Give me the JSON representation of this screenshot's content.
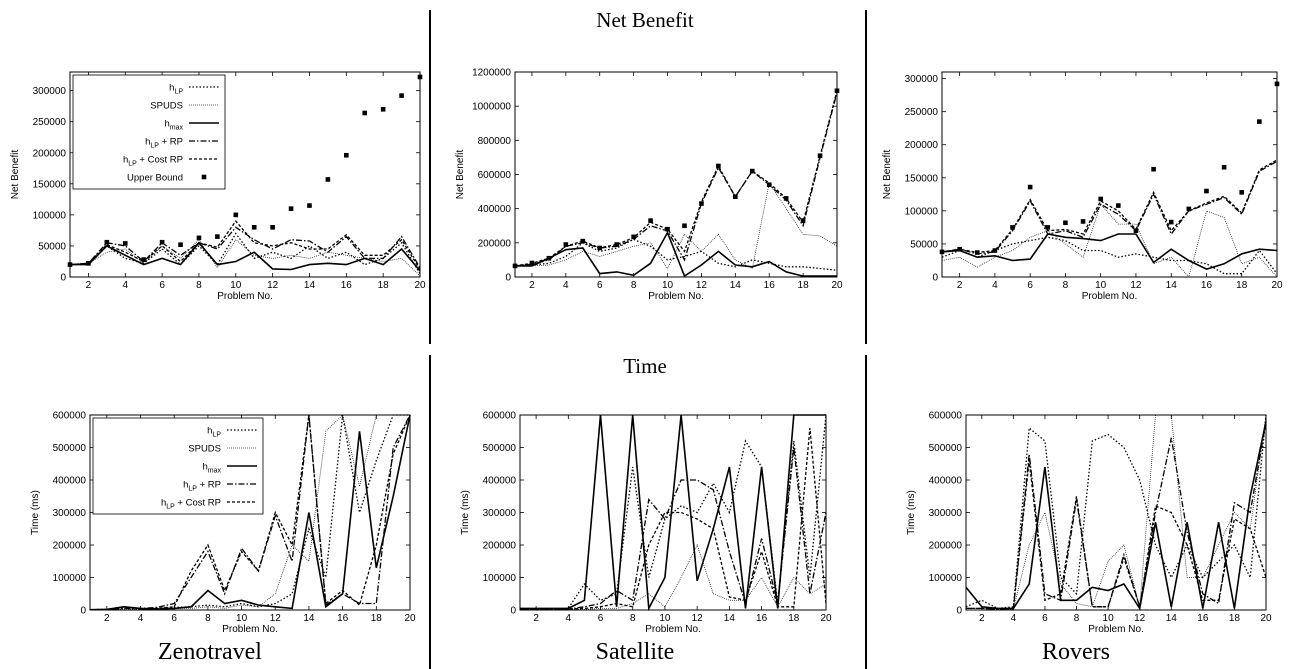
{
  "titles": {
    "net_benefit": "Net Benefit",
    "time": "Time",
    "zenotravel": "Zenotravel",
    "satellite": "Satellite",
    "rovers": "Rovers"
  },
  "chart_data": [
    {
      "id": "nb-zeno",
      "type": "line",
      "xlabel": "Problem No.",
      "ylabel": "Net Benefit",
      "xlim": [
        1,
        20
      ],
      "ylim": [
        0,
        330000
      ],
      "yticks": [
        0,
        50000,
        100000,
        150000,
        200000,
        250000,
        300000
      ],
      "xticks": [
        2,
        4,
        6,
        8,
        10,
        12,
        14,
        16,
        18,
        20
      ],
      "legend": "top-left",
      "series": [
        {
          "name": "hLP",
          "style": "dotted",
          "values": [
            20000,
            22000,
            50000,
            30000,
            22000,
            45000,
            20000,
            50000,
            20000,
            70000,
            30000,
            40000,
            30000,
            50000,
            30000,
            40000,
            20000,
            30000,
            55000,
            5000
          ]
        },
        {
          "name": "SPUDS",
          "style": "fine",
          "values": [
            20000,
            22000,
            40000,
            45000,
            22000,
            50000,
            30000,
            60000,
            15000,
            60000,
            35000,
            30000,
            35000,
            30000,
            40000,
            35000,
            30000,
            25000,
            30000,
            2000
          ]
        },
        {
          "name": "hmax",
          "style": "solid",
          "values": [
            20000,
            20000,
            50000,
            35000,
            20000,
            30000,
            20000,
            55000,
            20000,
            25000,
            40000,
            13000,
            12000,
            20000,
            22000,
            20000,
            30000,
            20000,
            45000,
            10000
          ]
        },
        {
          "name": "hLP + RP",
          "style": "dashdot",
          "values": [
            20000,
            22000,
            55000,
            50000,
            25000,
            55000,
            35000,
            55000,
            45000,
            80000,
            60000,
            45000,
            60000,
            58000,
            40000,
            65000,
            30000,
            30000,
            65000,
            15000
          ]
        },
        {
          "name": "hLP + Cost RP",
          "style": "dashed",
          "values": [
            20000,
            22000,
            52000,
            40000,
            25000,
            50000,
            25000,
            55000,
            48000,
            90000,
            55000,
            50000,
            55000,
            45000,
            45000,
            68000,
            35000,
            35000,
            60000,
            12000
          ]
        },
        {
          "name": "Upper Bound",
          "style": "points",
          "values": [
            20000,
            22000,
            56000,
            54000,
            28000,
            56000,
            52000,
            63000,
            65000,
            100000,
            80000,
            80000,
            110000,
            115000,
            157000,
            196000,
            264000,
            270000,
            292000,
            322000
          ]
        }
      ]
    },
    {
      "id": "nb-sat",
      "type": "line",
      "xlabel": "Problem No.",
      "ylabel": "Net Benefit",
      "xlim": [
        1,
        20
      ],
      "ylim": [
        0,
        1200000
      ],
      "yticks": [
        0,
        200000,
        400000,
        600000,
        800000,
        1000000,
        1200000
      ],
      "xticks": [
        2,
        4,
        6,
        8,
        10,
        12,
        14,
        16,
        18,
        20
      ],
      "legend": "none",
      "series": [
        {
          "name": "hLP",
          "style": "dotted",
          "values": [
            65000,
            70000,
            80000,
            120000,
            200000,
            150000,
            170000,
            220000,
            180000,
            100000,
            120000,
            150000,
            80000,
            60000,
            100000,
            80000,
            60000,
            60000,
            50000,
            40000
          ]
        },
        {
          "name": "SPUDS",
          "style": "fine",
          "values": [
            65000,
            65000,
            70000,
            100000,
            150000,
            120000,
            150000,
            180000,
            200000,
            50000,
            250000,
            150000,
            250000,
            100000,
            50000,
            550000,
            400000,
            250000,
            240000,
            180000
          ]
        },
        {
          "name": "hmax",
          "style": "solid",
          "values": [
            65000,
            65000,
            110000,
            160000,
            170000,
            20000,
            30000,
            10000,
            80000,
            260000,
            5000,
            70000,
            150000,
            70000,
            60000,
            90000,
            30000,
            5000,
            5000,
            5000
          ]
        },
        {
          "name": "hLP + RP",
          "style": "dashdot",
          "values": [
            65000,
            75000,
            100000,
            180000,
            200000,
            170000,
            180000,
            220000,
            300000,
            270000,
            100000,
            430000,
            640000,
            470000,
            620000,
            540000,
            450000,
            300000,
            700000,
            1080000
          ]
        },
        {
          "name": "hLP + Cost RP",
          "style": "dashed",
          "values": [
            65000,
            80000,
            110000,
            180000,
            210000,
            170000,
            190000,
            230000,
            320000,
            280000,
            150000,
            440000,
            650000,
            470000,
            620000,
            550000,
            460000,
            320000,
            710000,
            1090000
          ]
        },
        {
          "name": "Upper Bound",
          "style": "points",
          "values": [
            65000,
            82000,
            110000,
            190000,
            210000,
            170000,
            190000,
            235000,
            330000,
            280000,
            300000,
            430000,
            650000,
            470000,
            620000,
            540000,
            460000,
            330000,
            710000,
            1090000
          ]
        }
      ]
    },
    {
      "id": "nb-rov",
      "type": "line",
      "xlabel": "Problem No.",
      "ylabel": "Net Benefit",
      "xlim": [
        1,
        20
      ],
      "ylim": [
        0,
        310000
      ],
      "yticks": [
        0,
        50000,
        100000,
        150000,
        200000,
        250000,
        300000
      ],
      "xticks": [
        2,
        4,
        6,
        8,
        10,
        12,
        14,
        16,
        18,
        20
      ],
      "legend": "none",
      "series": [
        {
          "name": "hLP",
          "style": "dotted",
          "values": [
            30000,
            40000,
            30000,
            40000,
            50000,
            55000,
            60000,
            55000,
            40000,
            40000,
            30000,
            35000,
            30000,
            25000,
            25000,
            20000,
            5000,
            5000,
            40000,
            5000
          ]
        },
        {
          "name": "SPUDS",
          "style": "fine",
          "values": [
            25000,
            30000,
            15000,
            30000,
            40000,
            60000,
            70000,
            50000,
            30000,
            110000,
            80000,
            80000,
            20000,
            30000,
            0,
            100000,
            90000,
            20000,
            30000,
            0
          ]
        },
        {
          "name": "hmax",
          "style": "solid",
          "values": [
            38000,
            40000,
            30000,
            32000,
            25000,
            27000,
            65000,
            60000,
            58000,
            55000,
            65000,
            65000,
            22000,
            42000,
            25000,
            12000,
            20000,
            35000,
            42000,
            40000
          ]
        },
        {
          "name": "hLP + RP",
          "style": "dashdot",
          "values": [
            38000,
            42000,
            35000,
            38000,
            70000,
            115000,
            65000,
            70000,
            60000,
            110000,
            95000,
            70000,
            125000,
            65000,
            100000,
            110000,
            120000,
            95000,
            160000,
            175000
          ]
        },
        {
          "name": "hLP + Cost RP",
          "style": "dashed",
          "values": [
            38000,
            42000,
            37000,
            40000,
            72000,
            117000,
            70000,
            72000,
            65000,
            115000,
            100000,
            72000,
            128000,
            70000,
            100000,
            112000,
            122000,
            97000,
            162000,
            177000
          ]
        },
        {
          "name": "Upper Bound",
          "style": "points",
          "values": [
            38000,
            42000,
            37000,
            40000,
            75000,
            136000,
            75000,
            82000,
            84000,
            118000,
            108000,
            70000,
            163000,
            83000,
            103000,
            130000,
            166000,
            128000,
            235000,
            292000
          ]
        }
      ]
    },
    {
      "id": "t-zeno",
      "type": "line",
      "xlabel": "Problem No.",
      "ylabel": "Time (ms)",
      "xlim": [
        1,
        20
      ],
      "ylim": [
        0,
        600000
      ],
      "yticks": [
        0,
        100000,
        200000,
        300000,
        400000,
        500000,
        600000
      ],
      "xticks": [
        2,
        4,
        6,
        8,
        10,
        12,
        14,
        16,
        18,
        20
      ],
      "legend": "top-left",
      "series": [
        {
          "name": "hLP",
          "style": "dotted",
          "values": [
            1000,
            2000,
            5000,
            3000,
            5000,
            8000,
            10000,
            15000,
            10000,
            20000,
            10000,
            20000,
            50000,
            250000,
            100000,
            600000,
            300000,
            460000,
            600000,
            600000
          ]
        },
        {
          "name": "SPUDS",
          "style": "fine",
          "values": [
            1000,
            1500,
            3000,
            2000,
            4000,
            5000,
            5000,
            10000,
            5000,
            15000,
            10000,
            50000,
            200000,
            150000,
            550000,
            600000,
            380000,
            600000,
            600000,
            600000
          ]
        },
        {
          "name": "hmax",
          "style": "solid",
          "values": [
            1000,
            2000,
            10000,
            5000,
            3000,
            5000,
            10000,
            60000,
            20000,
            30000,
            15000,
            10000,
            5000,
            300000,
            10000,
            50000,
            550000,
            130000,
            350000,
            600000
          ]
        },
        {
          "name": "hLP + RP",
          "style": "dashdot",
          "values": [
            1000,
            2000,
            5000,
            5000,
            8000,
            20000,
            100000,
            180000,
            50000,
            190000,
            120000,
            290000,
            150000,
            600000,
            15000,
            50000,
            20000,
            20000,
            500000,
            600000
          ]
        },
        {
          "name": "hLP + Cost RP",
          "style": "dashed",
          "values": [
            1000,
            2000,
            10000,
            4000,
            5000,
            10000,
            120000,
            200000,
            60000,
            180000,
            120000,
            300000,
            200000,
            600000,
            20000,
            60000,
            15000,
            200000,
            480000,
            600000
          ]
        }
      ]
    },
    {
      "id": "t-sat",
      "type": "line",
      "xlabel": "Problem No.",
      "ylabel": "Time (ms)",
      "xlim": [
        1,
        20
      ],
      "ylim": [
        0,
        600000
      ],
      "yticks": [
        0,
        100000,
        200000,
        300000,
        400000,
        500000,
        600000
      ],
      "xticks": [
        2,
        4,
        6,
        8,
        10,
        12,
        14,
        16,
        18,
        20
      ],
      "legend": "none",
      "series": [
        {
          "name": "hLP",
          "style": "dotted",
          "values": [
            2000,
            2000,
            3000,
            5000,
            80000,
            30000,
            50000,
            440000,
            100000,
            280000,
            320000,
            300000,
            390000,
            300000,
            520000,
            440000,
            20000,
            520000,
            100000,
            600000
          ]
        },
        {
          "name": "SPUDS",
          "style": "fine",
          "values": [
            1000,
            1000,
            2000,
            3000,
            2000,
            5000,
            5000,
            20000,
            50000,
            10000,
            100000,
            200000,
            50000,
            30000,
            30000,
            100000,
            10000,
            100000,
            50000,
            80000
          ]
        },
        {
          "name": "hmax",
          "style": "solid",
          "values": [
            5000,
            5000,
            5000,
            5000,
            30000,
            600000,
            10000,
            600000,
            5000,
            100000,
            600000,
            90000,
            250000,
            440000,
            5000,
            440000,
            5000,
            600000,
            600000,
            600000
          ]
        },
        {
          "name": "hLP + RP",
          "style": "dashdot",
          "values": [
            1000,
            1000,
            2000,
            3000,
            10000,
            20000,
            60000,
            30000,
            340000,
            280000,
            400000,
            400000,
            370000,
            180000,
            20000,
            220000,
            20000,
            500000,
            50000,
            300000
          ]
        },
        {
          "name": "hLP + Cost RP",
          "style": "dashed",
          "values": [
            1000,
            1000,
            2000,
            3000,
            5000,
            10000,
            20000,
            10000,
            200000,
            300000,
            300000,
            280000,
            250000,
            40000,
            30000,
            180000,
            10000,
            10000,
            560000,
            20000
          ]
        }
      ]
    },
    {
      "id": "t-rov",
      "type": "line",
      "xlabel": "Problem No.",
      "ylabel": "Time (ms)",
      "xlim": [
        1,
        20
      ],
      "ylim": [
        0,
        600000
      ],
      "yticks": [
        0,
        100000,
        200000,
        300000,
        400000,
        500000,
        600000
      ],
      "xticks": [
        2,
        4,
        6,
        8,
        10,
        12,
        14,
        16,
        18,
        20
      ],
      "legend": "none",
      "series": [
        {
          "name": "hLP",
          "style": "dotted",
          "values": [
            10000,
            30000,
            5000,
            10000,
            560000,
            520000,
            100000,
            50000,
            520000,
            540000,
            500000,
            400000,
            200000,
            100000,
            200000,
            100000,
            150000,
            200000,
            100000,
            600000
          ]
        },
        {
          "name": "SPUDS",
          "style": "fine",
          "values": [
            5000,
            5000,
            2000,
            3000,
            200000,
            300000,
            80000,
            20000,
            10000,
            150000,
            200000,
            10000,
            600000,
            600000,
            100000,
            100000,
            200000,
            300000,
            250000,
            600000
          ]
        },
        {
          "name": "hmax",
          "style": "solid",
          "values": [
            70000,
            10000,
            5000,
            5000,
            80000,
            440000,
            30000,
            30000,
            70000,
            60000,
            80000,
            5000,
            270000,
            10000,
            270000,
            5000,
            270000,
            5000,
            350000,
            580000
          ]
        },
        {
          "name": "hLP + RP",
          "style": "dashdot",
          "values": [
            5000,
            5000,
            3000,
            5000,
            480000,
            50000,
            30000,
            340000,
            10000,
            10000,
            170000,
            10000,
            300000,
            530000,
            240000,
            50000,
            20000,
            330000,
            300000,
            580000
          ]
        },
        {
          "name": "hLP + Cost RP",
          "style": "dashed",
          "values": [
            5000,
            5000,
            3000,
            5000,
            460000,
            30000,
            50000,
            350000,
            10000,
            10000,
            160000,
            10000,
            320000,
            300000,
            200000,
            30000,
            30000,
            280000,
            250000,
            100000
          ]
        }
      ]
    }
  ]
}
